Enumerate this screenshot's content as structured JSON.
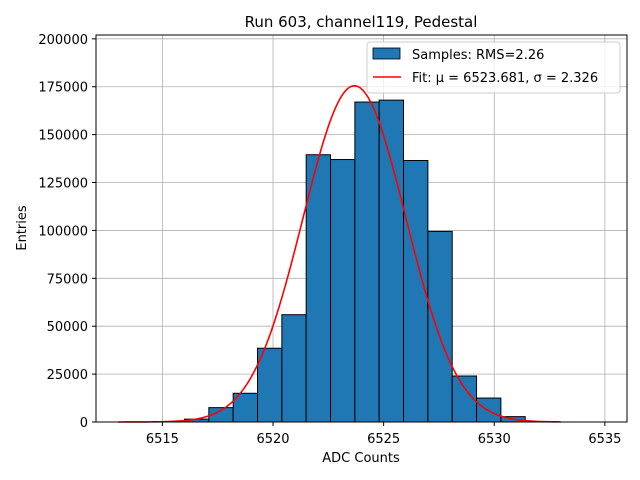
{
  "chart_data": {
    "type": "bar",
    "title": "Run 603, channel119, Pedestal",
    "xlabel": "ADC Counts",
    "ylabel": "Entries",
    "xlim": [
      6512.0,
      6536.0
    ],
    "ylim": [
      0,
      202000
    ],
    "xticks": [
      6515,
      6520,
      6525,
      6530,
      6535
    ],
    "yticks": [
      0,
      25000,
      50000,
      75000,
      100000,
      125000,
      150000,
      175000,
      200000
    ],
    "grid": true,
    "legend_position": "top-right",
    "bar_color": "#1f77b4",
    "fit_color": "#ff0000",
    "histogram": {
      "name": "Samples: RMS=2.26",
      "bin_width": 1.1,
      "bin_starts": [
        6516.0,
        6517.1,
        6518.2,
        6519.3,
        6520.4,
        6521.5,
        6522.6,
        6523.7,
        6524.8,
        6525.9,
        6527.0,
        6528.1,
        6529.2,
        6530.3
      ],
      "counts": [
        1500,
        7500,
        15000,
        38500,
        56000,
        139500,
        137000,
        167000,
        168000,
        136500,
        99500,
        24000,
        12500,
        2800
      ]
    },
    "fit": {
      "name": "Fit: μ = 6523.681, σ = 2.326",
      "mu": 6523.681,
      "sigma": 2.326,
      "amplitude": 175500,
      "x_range": [
        6513,
        6533
      ]
    }
  }
}
